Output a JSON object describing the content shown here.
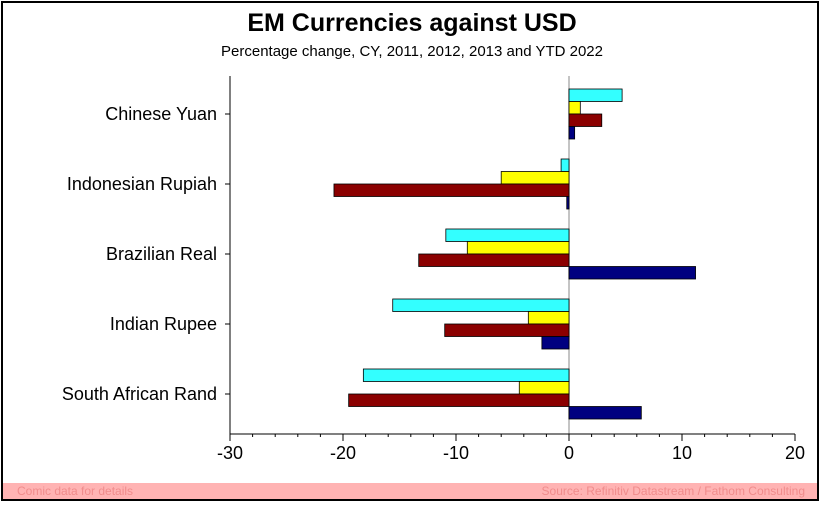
{
  "chart_data": {
    "type": "bar",
    "orientation": "horizontal",
    "title": "EM Currencies against USD",
    "subtitle": "Percentage change, CY, 2011, 2012, 2013 and YTD 2022",
    "categories": [
      "Chinese Yuan",
      "Indonesian Rupiah",
      "Brazilian Real",
      "Indian Rupee",
      "South African Rand"
    ],
    "xlim": [
      -30,
      20
    ],
    "xticks": [
      -30,
      -20,
      -10,
      0,
      10,
      20
    ],
    "grid": false,
    "legend": "none",
    "series": [
      {
        "color": "#33ffff",
        "values": [
          4.7,
          -0.7,
          -10.9,
          -15.6,
          -18.2
        ]
      },
      {
        "color": "#ffff00",
        "values": [
          1.0,
          -6.0,
          -9.0,
          -3.6,
          -4.4
        ]
      },
      {
        "color": "#8b0000",
        "values": [
          2.9,
          -20.8,
          -13.3,
          -11.0,
          -19.5
        ]
      },
      {
        "color": "#000080",
        "values": [
          0.5,
          -0.2,
          11.2,
          -2.4,
          6.4
        ]
      }
    ]
  },
  "footer": {
    "left": "Comic data for details",
    "right": "Source: Refinitiv Datastream / Fathom Consulting"
  }
}
